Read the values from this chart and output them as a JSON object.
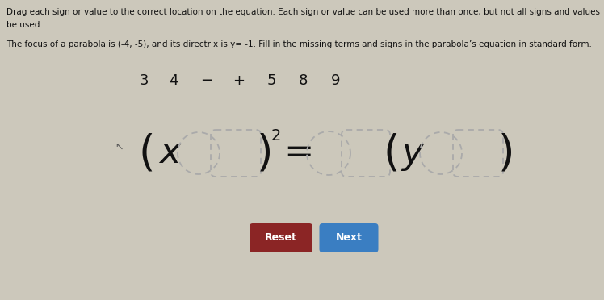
{
  "bg_color": "#ccc8bb",
  "title_line1": "Drag each sign or value to the correct location on the equation. Each sign or value can be used more than once, but not all signs and values",
  "title_line2": "be used.",
  "subtitle": "The focus of a parabola is (-4, -5), and its directrix is y= -1. Fill in the missing terms and signs in the parabola’s equation in standard form.",
  "drag_items": [
    "3",
    "4",
    "−",
    "+",
    "5",
    "8",
    "9"
  ],
  "reset_btn_color": "#8B2525",
  "next_btn_color": "#3A7EC2",
  "font_color": "#111111",
  "dash_color": "#aaaaaa",
  "figsize": [
    7.48,
    3.72
  ],
  "dpi": 100
}
